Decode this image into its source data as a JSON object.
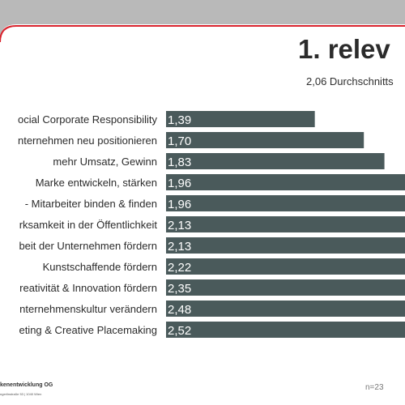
{
  "slide": {
    "title": "1. relev",
    "subtitle": "2,06 Durchschnitts",
    "footer_company": "kenentwicklung OG",
    "footer_address": "ngerlinstraße 53 | 1040 Wien",
    "sample_size": "n=23",
    "colors": {
      "background": "#ffffff",
      "frame": "#bdbdbd",
      "accent_line": "#d9232d",
      "bar": "#4a5a5b",
      "bar_label": "#ffffff",
      "text": "#2b2b2b"
    }
  },
  "chart_data": {
    "type": "bar",
    "orientation": "horizontal",
    "categories": [
      "ocial Corporate Responsibility",
      "nternehmen neu positionieren",
      "mehr Umsatz, Gewinn",
      "Marke entwickeln, stärken",
      "- Mitarbeiter binden & finden",
      "rksamkeit in der Öffentlichkeit",
      "beit der Unternehmen fördern",
      "Kunstschaffende fördern",
      "reativität & Innovation fördern",
      "nternehmenskultur verändern",
      "eting & Creative Placemaking"
    ],
    "values": [
      1.39,
      1.7,
      1.83,
      1.96,
      1.96,
      2.13,
      2.13,
      2.22,
      2.35,
      2.48,
      2.52
    ],
    "value_labels": [
      "1,39",
      "1,70",
      "1,83",
      "1,96",
      "1,96",
      "2,13",
      "2,13",
      "2,22",
      "2,35",
      "2,48",
      "2,52"
    ],
    "xlim": [
      0.45,
      1.96
    ],
    "grid": false,
    "legend": "none"
  }
}
